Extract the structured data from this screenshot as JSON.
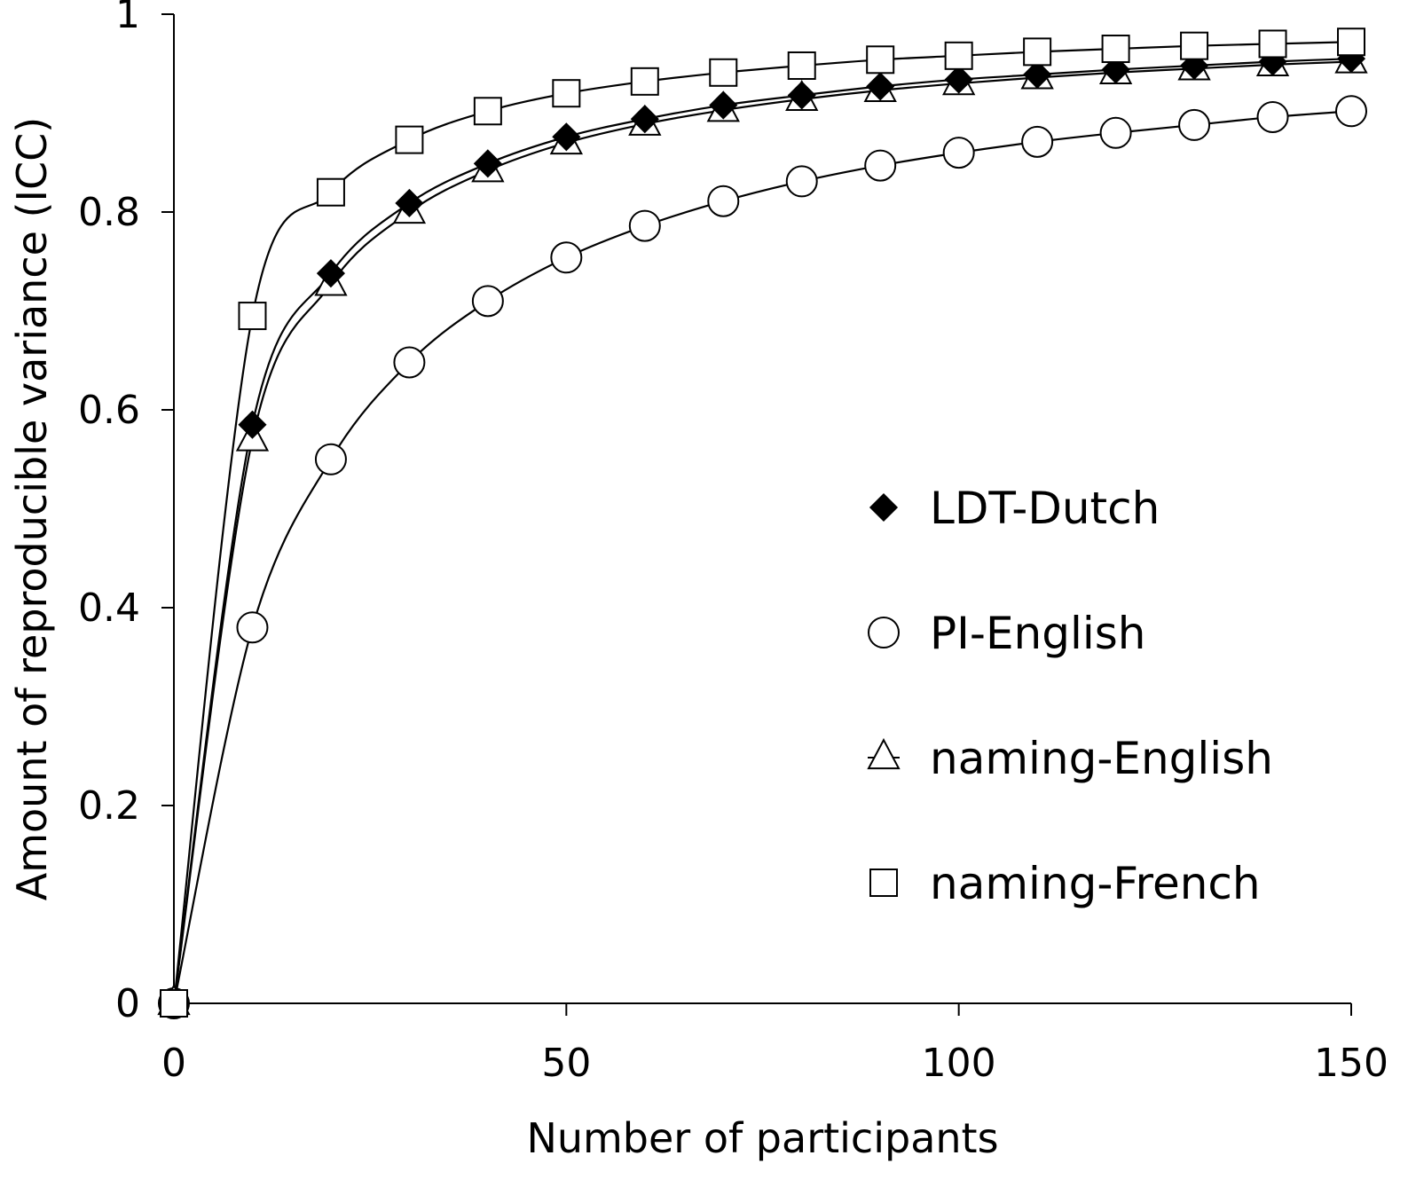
{
  "chart_data": {
    "type": "line",
    "title": "",
    "xlabel": "Number of participants",
    "ylabel": "Amount of reproducible variance (ICC)",
    "xlim": [
      0,
      150
    ],
    "ylim": [
      0,
      1
    ],
    "xticks": [
      0,
      50,
      100,
      150
    ],
    "yticks": [
      0,
      0.2,
      0.4,
      0.6,
      0.8,
      1
    ],
    "xtick_labels": [
      "0",
      "50",
      "100",
      "150"
    ],
    "ytick_labels": [
      "0",
      "0.2",
      "0.4",
      "0.6",
      "0.8",
      "1"
    ],
    "grid": false,
    "legend_position": "right",
    "x": [
      0,
      10,
      20,
      30,
      40,
      50,
      60,
      70,
      80,
      90,
      100,
      110,
      120,
      130,
      140,
      150
    ],
    "series": [
      {
        "name": "LDT-Dutch",
        "marker": "diamond-filled",
        "values": [
          0,
          0.585,
          0.738,
          0.809,
          0.849,
          0.876,
          0.894,
          0.908,
          0.918,
          0.927,
          0.934,
          0.939,
          0.944,
          0.948,
          0.952,
          0.955
        ]
      },
      {
        "name": "PI-English",
        "marker": "circle-open",
        "values": [
          0,
          0.38,
          0.55,
          0.648,
          0.71,
          0.754,
          0.786,
          0.811,
          0.831,
          0.847,
          0.86,
          0.871,
          0.88,
          0.888,
          0.896,
          0.902
        ]
      },
      {
        "name": "naming-English",
        "marker": "triangle-open",
        "values": [
          0,
          0.57,
          0.727,
          0.8,
          0.842,
          0.87,
          0.889,
          0.903,
          0.914,
          0.923,
          0.93,
          0.936,
          0.941,
          0.945,
          0.949,
          0.952
        ]
      },
      {
        "name": "naming-French",
        "marker": "square-open",
        "values": [
          0,
          0.695,
          0.82,
          0.873,
          0.902,
          0.92,
          0.932,
          0.941,
          0.948,
          0.954,
          0.958,
          0.962,
          0.965,
          0.968,
          0.97,
          0.972
        ]
      }
    ]
  }
}
